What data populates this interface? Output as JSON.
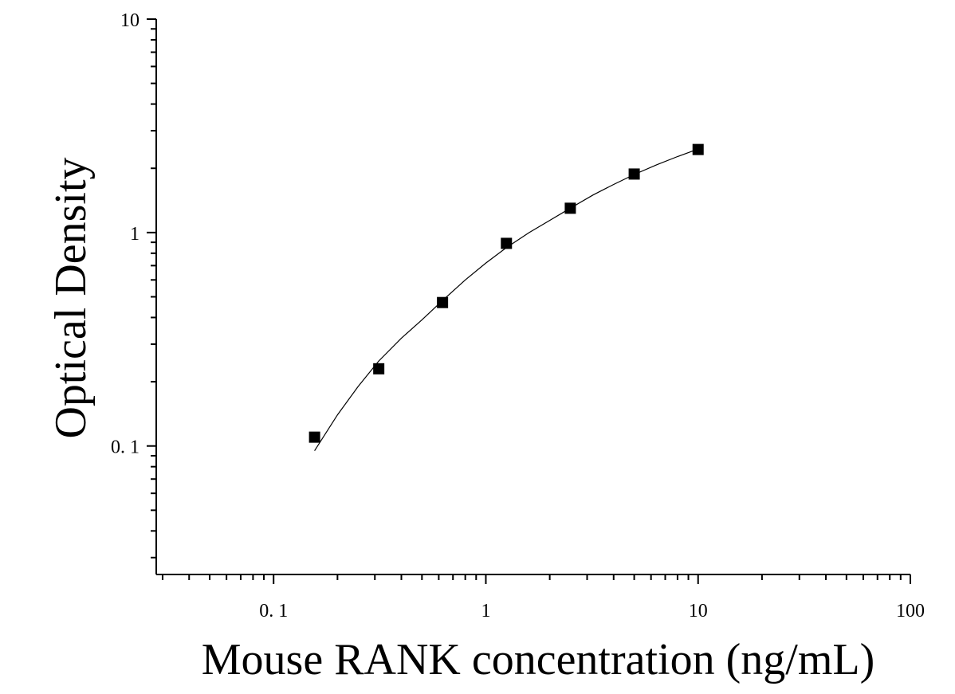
{
  "chart_data": {
    "type": "scatter",
    "title": "",
    "xlabel": "Mouse RANK concentration (ng/mL)",
    "ylabel": "Optical Density",
    "xscale": "log",
    "yscale": "log",
    "xlim": [
      0.028,
      100
    ],
    "ylim": [
      0.025,
      10
    ],
    "x_ticks": [
      0.1,
      1,
      10,
      100
    ],
    "x_tick_labels": [
      "0. 1",
      "1",
      "10",
      "100"
    ],
    "y_ticks": [
      0.1,
      1,
      10
    ],
    "y_tick_labels": [
      "0. 1",
      "1",
      "10"
    ],
    "grid": false,
    "legend": "none",
    "marker": "square",
    "marker_color": "#000000",
    "line_color": "#000000",
    "series": [
      {
        "points": [
          {
            "x": 0.156,
            "y": 0.11
          },
          {
            "x": 0.313,
            "y": 0.23
          },
          {
            "x": 0.625,
            "y": 0.47
          },
          {
            "x": 1.25,
            "y": 0.89
          },
          {
            "x": 2.5,
            "y": 1.3
          },
          {
            "x": 5,
            "y": 1.88
          },
          {
            "x": 10,
            "y": 2.45
          }
        ]
      }
    ],
    "fit_curve": {
      "x": [
        0.156,
        0.2,
        0.25,
        0.313,
        0.4,
        0.5,
        0.625,
        0.8,
        1.0,
        1.25,
        1.6,
        2.0,
        2.5,
        3.2,
        4.0,
        5.0,
        6.4,
        8.0,
        10.0
      ],
      "y": [
        0.095,
        0.14,
        0.19,
        0.25,
        0.32,
        0.39,
        0.48,
        0.6,
        0.72,
        0.85,
        1.0,
        1.14,
        1.3,
        1.5,
        1.68,
        1.87,
        2.08,
        2.27,
        2.46
      ]
    }
  }
}
